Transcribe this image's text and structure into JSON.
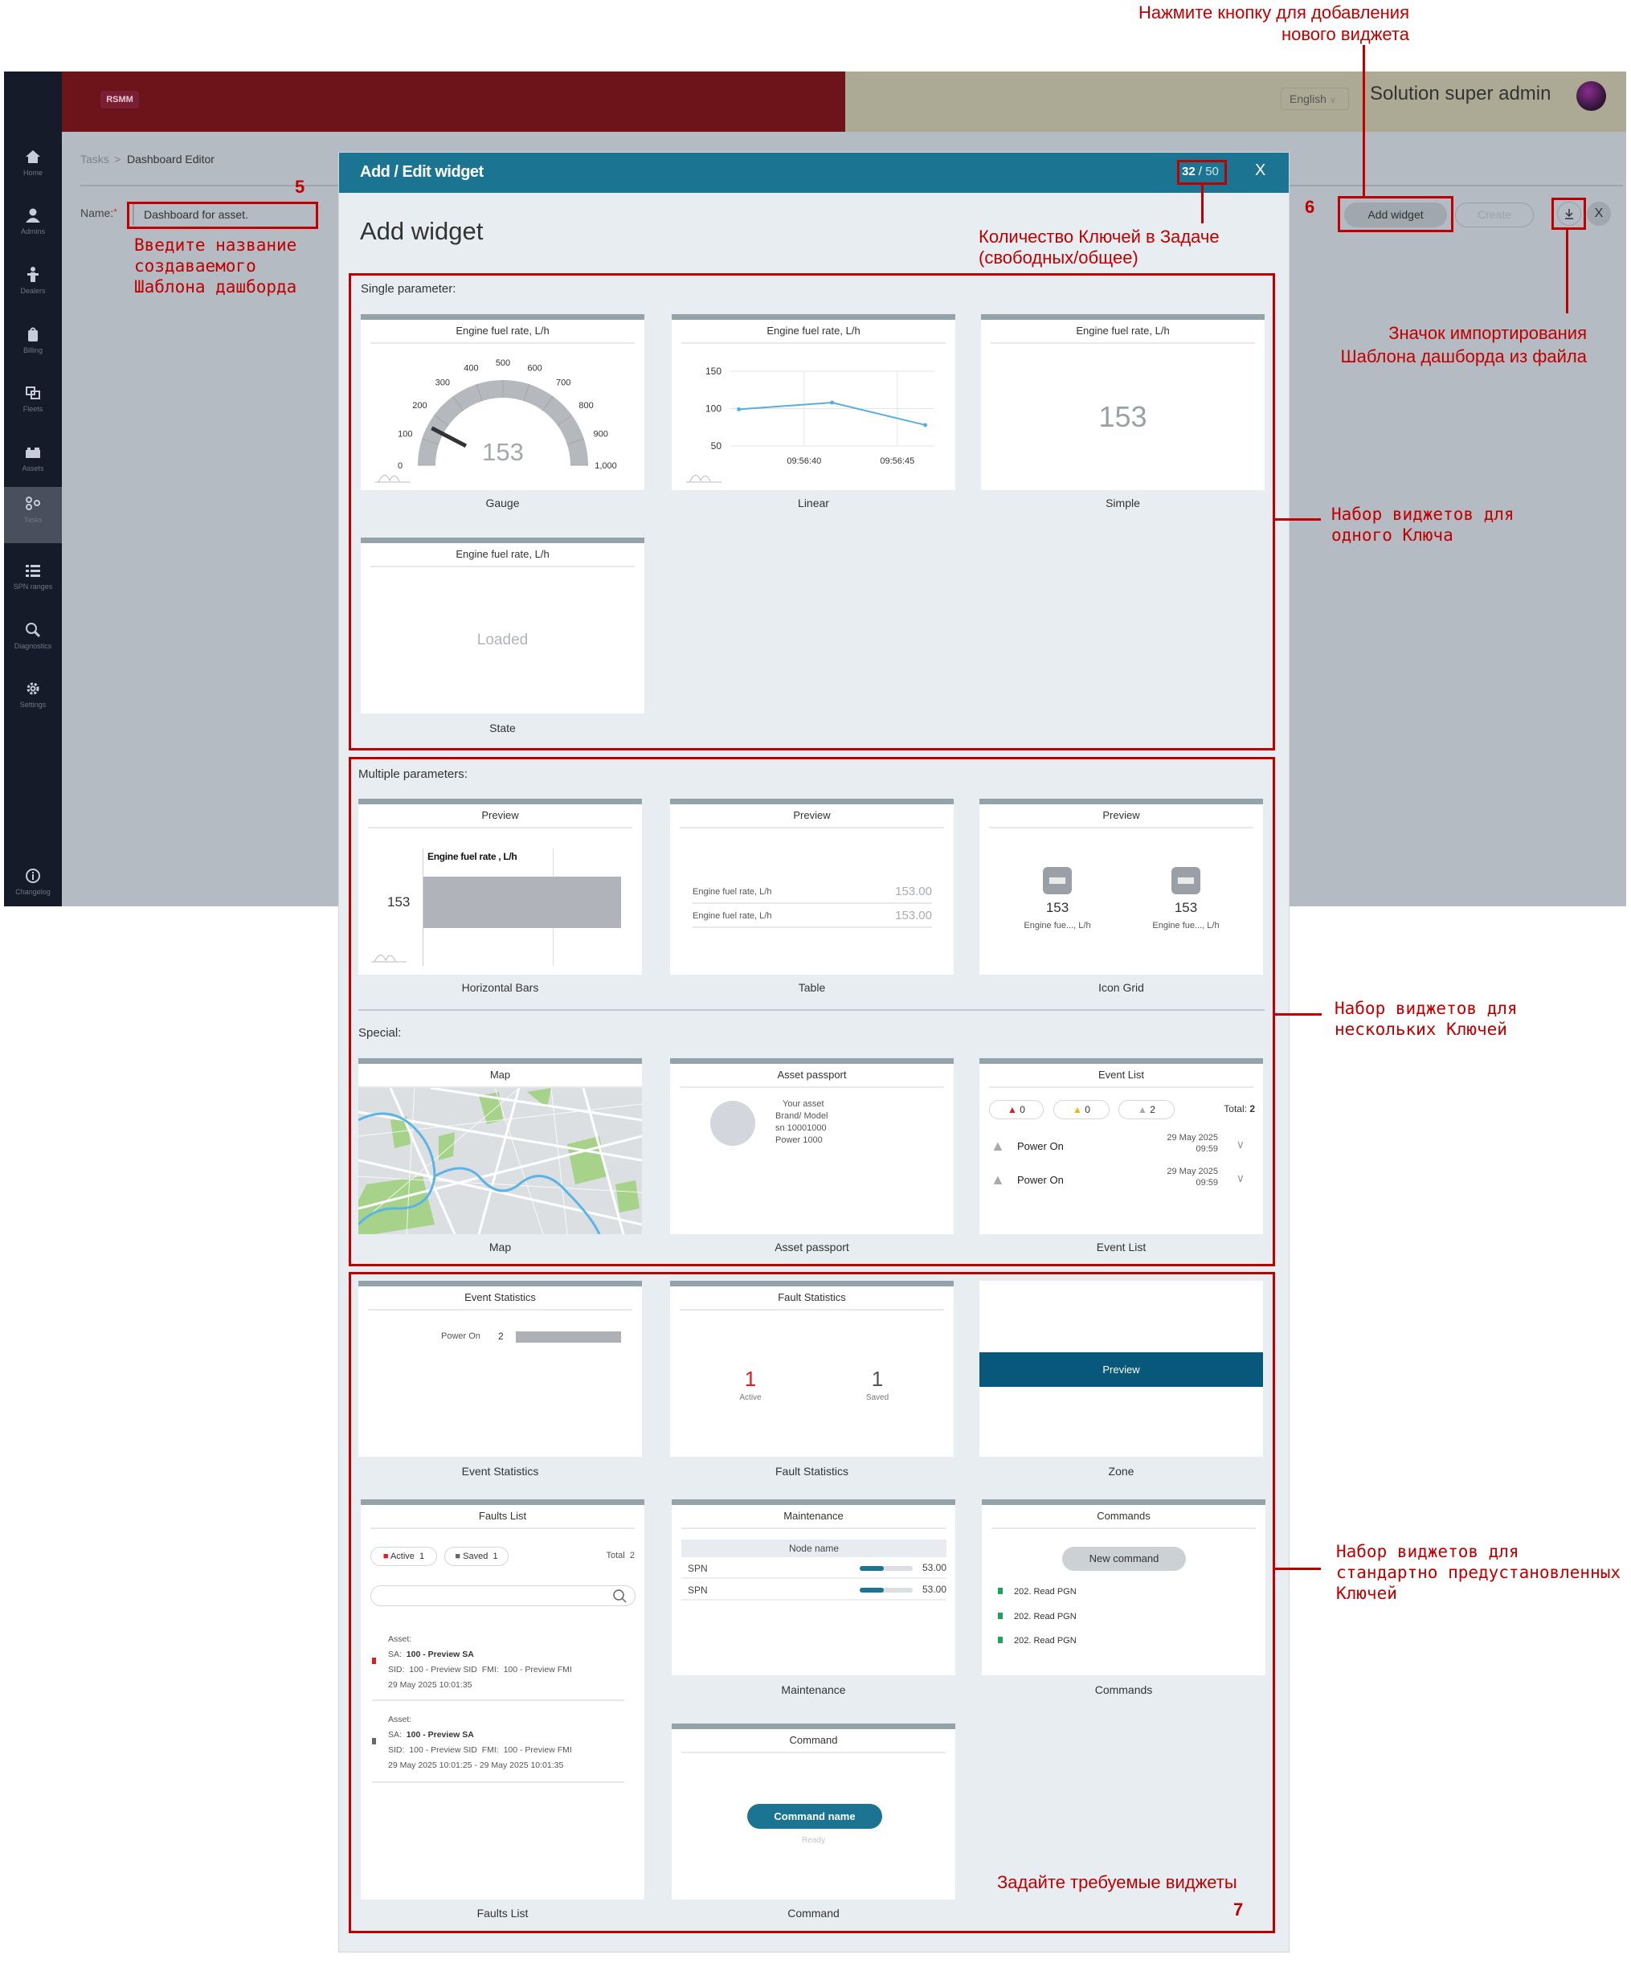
{
  "app": {
    "logo": "RSMM",
    "language": "English",
    "user": "Solution super admin"
  },
  "sidebar": {
    "items": [
      {
        "label": "Home",
        "icon": "home-icon"
      },
      {
        "label": "Admins",
        "icon": "user-icon"
      },
      {
        "label": "Dealers",
        "icon": "dealer-icon"
      },
      {
        "label": "Billing",
        "icon": "billing-icon"
      },
      {
        "label": "Fleets",
        "icon": "fleets-icon"
      },
      {
        "label": "Assets",
        "icon": "assets-icon"
      },
      {
        "label": "Tasks",
        "icon": "tasks-icon",
        "active": true
      },
      {
        "label": "SPN ranges",
        "icon": "list-icon"
      },
      {
        "label": "Diagnostics",
        "icon": "diagnostics-icon"
      },
      {
        "label": "Settings",
        "icon": "gear-icon"
      },
      {
        "label": "Changelog",
        "icon": "info-icon"
      }
    ]
  },
  "breadcrumb": {
    "parent": "Tasks",
    "separator": ">",
    "current": "Dashboard Editor"
  },
  "form": {
    "name_label": "Name:",
    "required_mark": "*",
    "name_value": "Dashboard for asset."
  },
  "toolbar": {
    "add_widget": "Add widget",
    "create": "Create",
    "import_icon": "download-icon",
    "close": "X"
  },
  "modal": {
    "title": "Add / Edit widget",
    "keys_free": "32",
    "keys_sep": "/",
    "keys_total": "50",
    "close": "X",
    "heading": "Add widget",
    "sections": {
      "single": "Single parameter:",
      "multiple": "Multiple parameters:",
      "special": "Special:"
    }
  },
  "widgets": {
    "gauge": {
      "title": "Engine fuel rate, L/h",
      "caption": "Gauge",
      "value": "153",
      "value_num": 153,
      "ticks": [
        0,
        100,
        200,
        300,
        400,
        500,
        600,
        700,
        800,
        900,
        1000
      ],
      "tick_labels": [
        "0",
        "100",
        "200",
        "300",
        "400",
        "500",
        "600",
        "700",
        "800",
        "900",
        "1,000"
      ]
    },
    "linear": {
      "title": "Engine fuel rate, L/h",
      "caption": "Linear",
      "y_ticks": [
        "150",
        "100",
        "50"
      ],
      "x_ticks": [
        "09:56:40",
        "09:56:45"
      ],
      "chart_data": {
        "type": "line",
        "x": [
          "09:56:36.5",
          "09:56:41.5",
          "09:56:46.5"
        ],
        "y": [
          99,
          108,
          78
        ],
        "ylim": [
          50,
          150
        ],
        "grid": true
      }
    },
    "simple": {
      "title": "Engine fuel rate, L/h",
      "caption": "Simple",
      "value": "153"
    },
    "state": {
      "title": "Engine fuel rate, L/h",
      "caption": "State",
      "value": "Loaded"
    },
    "hbars": {
      "title": "Preview",
      "caption": "Horizontal Bars",
      "series": "Engine fuel rate , L/h",
      "value": "153"
    },
    "table": {
      "title": "Preview",
      "caption": "Table",
      "rows": [
        {
          "name": "Engine fuel rate, L/h",
          "value": "153.00"
        },
        {
          "name": "Engine fuel rate, L/h",
          "value": "153.00"
        }
      ]
    },
    "icon_grid": {
      "title": "Preview",
      "caption": "Icon Grid",
      "items": [
        {
          "value": "153",
          "label": "Engine fue..., L/h"
        },
        {
          "value": "153",
          "label": "Engine fue..., L/h"
        }
      ]
    },
    "map": {
      "title": "Map",
      "caption": "Map"
    },
    "asset_passport": {
      "title": "Asset passport",
      "caption": "Asset passport",
      "lines": [
        "Your asset",
        "Brand/ Model",
        "sn 10001000",
        "Power 1000"
      ]
    },
    "event_list": {
      "title": "Event List",
      "caption": "Event List",
      "counts": [
        "0",
        "0",
        "2"
      ],
      "total_label": "Total:",
      "total": "2",
      "events": [
        {
          "name": "Power On",
          "date": "29 May 2025",
          "time": "09:59"
        },
        {
          "name": "Power On",
          "date": "29 May 2025",
          "time": "09:59"
        }
      ]
    },
    "event_statistics": {
      "title": "Event Statistics",
      "caption": "Event Statistics",
      "label": "Power On",
      "count": "2"
    },
    "fault_statistics": {
      "title": "Fault Statistics",
      "caption": "Fault Statistics",
      "active": "1",
      "active_label": "Active",
      "saved": "1",
      "saved_label": "Saved"
    },
    "zone": {
      "caption": "Zone",
      "band": "Preview"
    },
    "faults_list": {
      "title": "Faults List",
      "caption": "Faults List",
      "active_label": "Active",
      "active": "1",
      "saved_label": "Saved",
      "saved": "1",
      "total_label": "Total",
      "total": "2",
      "search_placeholder": "",
      "entries": [
        {
          "asset": "Asset:",
          "sa_label": "SA:",
          "sa": "100 - Preview SA",
          "sid_label": "SID:",
          "sid": "100 - Preview SID",
          "fmi_label": "FMI:",
          "fmi": "100 - Preview FMI",
          "date": "29 May 2025 10:01:35"
        },
        {
          "asset": "Asset:",
          "sa_label": "SA:",
          "sa": "100 - Preview SA",
          "sid_label": "SID:",
          "sid": "100 - Preview SID",
          "fmi_label": "FMI:",
          "fmi": "100 - Preview FMI",
          "date": "29 May 2025 10:01:25 - 29 May 2025 10:01:35"
        }
      ]
    },
    "maintenance": {
      "title": "Maintenance",
      "caption": "Maintenance",
      "header": "Node name",
      "rows": [
        {
          "name": "SPN",
          "value": "53.00",
          "progress": 0.45
        },
        {
          "name": "SPN",
          "value": "53.00",
          "progress": 0.45
        }
      ]
    },
    "commands": {
      "title": "Commands",
      "caption": "Commands",
      "button": "New command",
      "items": [
        "202. Read PGN",
        "202. Read PGN",
        "202. Read PGN"
      ]
    },
    "command": {
      "title": "Command",
      "caption": "Command",
      "button": "Command name",
      "status": "Ready"
    }
  },
  "annotations": {
    "add_widget_hint": [
      "Нажмите кнопку для добавления",
      "нового виджета"
    ],
    "name_hint": [
      "Введите название",
      "создаваемого",
      "Шаблона дашборда"
    ],
    "keys_hint": [
      "Количество Ключей в Задаче",
      "(свободных/общее)"
    ],
    "import_hint": [
      "Значок импортирования",
      "Шаблона дашборда из файла"
    ],
    "single_set": [
      "Набор виджетов для",
      "одного Ключа"
    ],
    "multi_set": [
      "Набор виджетов для",
      "нескольких Ключей"
    ],
    "standard_set": [
      "Набор виджетов для",
      "стандартно предустановленных",
      "Ключей"
    ],
    "set_widgets": "Задайте требуемые виджеты",
    "step5": "5",
    "step6": "6",
    "step7": "7"
  },
  "colors": {
    "accent": "#1b7491",
    "header": "#6d141a",
    "annotation": "#c00000",
    "zone_band": "#07587a"
  }
}
